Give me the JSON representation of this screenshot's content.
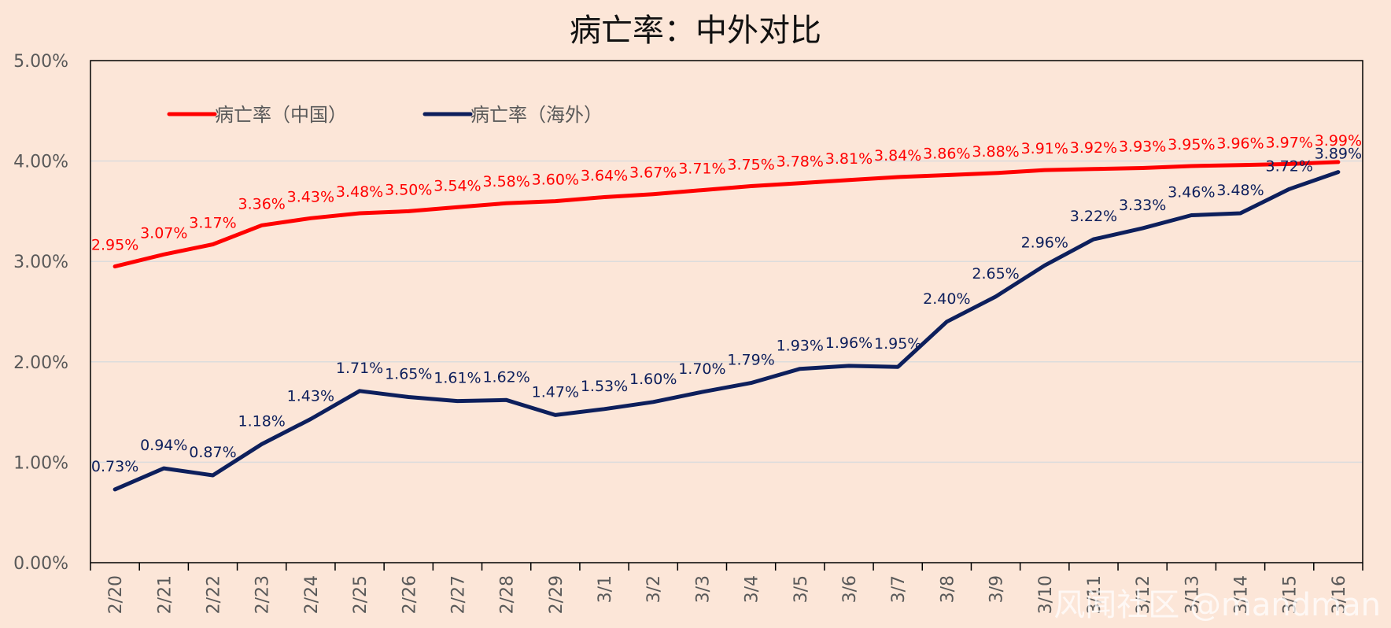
{
  "chart_data": {
    "type": "line",
    "title": "病亡率：中外对比",
    "categories": [
      "2/20",
      "2/21",
      "2/22",
      "2/23",
      "2/24",
      "2/25",
      "2/26",
      "2/27",
      "2/28",
      "2/29",
      "3/1",
      "3/2",
      "3/3",
      "3/4",
      "3/5",
      "3/6",
      "3/7",
      "3/8",
      "3/9",
      "3/10",
      "3/11",
      "3/12",
      "3/13",
      "3/14",
      "3/15",
      "3/16"
    ],
    "ylim": [
      0,
      5
    ],
    "yticks": [
      "0.00%",
      "1.00%",
      "2.00%",
      "3.00%",
      "4.00%",
      "5.00%"
    ],
    "grid": true,
    "legend_position": "top-left",
    "series": [
      {
        "name": "病亡率（中国）",
        "color": "#ff0000",
        "values": [
          2.95,
          3.07,
          3.17,
          3.36,
          3.43,
          3.48,
          3.5,
          3.54,
          3.58,
          3.6,
          3.64,
          3.67,
          3.71,
          3.75,
          3.78,
          3.81,
          3.84,
          3.86,
          3.88,
          3.91,
          3.92,
          3.93,
          3.95,
          3.96,
          3.97,
          3.99
        ],
        "labels": [
          "2.95%",
          "3.07%",
          "3.17%",
          "3.36%",
          "3.43%",
          "3.48%",
          "3.50%",
          "3.54%",
          "3.58%",
          "3.60%",
          "3.64%",
          "3.67%",
          "3.71%",
          "3.75%",
          "3.78%",
          "3.81%",
          "3.84%",
          "3.86%",
          "3.88%",
          "3.91%",
          "3.92%",
          "3.93%",
          "3.95%",
          "3.96%",
          "3.97%",
          "3.99%"
        ]
      },
      {
        "name": "病亡率（海外）",
        "color": "#0d1f5c",
        "values": [
          0.73,
          0.94,
          0.87,
          1.18,
          1.43,
          1.71,
          1.65,
          1.61,
          1.62,
          1.47,
          1.53,
          1.6,
          1.7,
          1.79,
          1.93,
          1.96,
          1.95,
          2.4,
          2.65,
          2.96,
          3.22,
          3.33,
          3.46,
          3.48,
          3.72,
          3.89
        ],
        "labels": [
          "0.73%",
          "0.94%",
          "0.87%",
          "1.18%",
          "1.43%",
          "1.71%",
          "1.65%",
          "1.61%",
          "1.62%",
          "1.47%",
          "1.53%",
          "1.60%",
          "1.70%",
          "1.79%",
          "1.93%",
          "1.96%",
          "1.95%",
          "2.40%",
          "2.65%",
          "2.96%",
          "3.22%",
          "3.33%",
          "3.46%",
          "3.48%",
          "3.72%",
          "3.89%"
        ]
      }
    ]
  },
  "watermark": "风闻社区 @mandman"
}
